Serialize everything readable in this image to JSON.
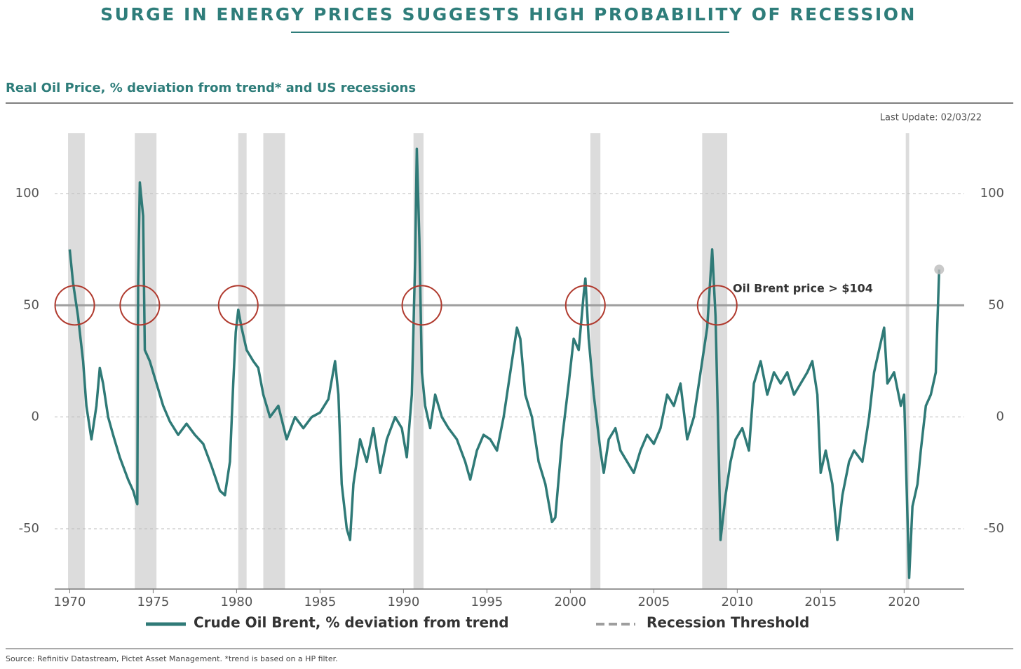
{
  "chart_data": {
    "type": "line",
    "title": "SURGE IN ENERGY PRICES SUGGESTS HIGH PROBABILITY OF RECESSION",
    "subtitle": "Real Oil Price, % deviation from trend* and US recessions",
    "last_update": "Last Update: 02/03/22",
    "annotation": "Oil Brent price > $104",
    "source": "Source: Refinitiv Datastream, Pictet Asset Management. *trend is based on a HP filter.",
    "x": [
      1970.0,
      1970.2,
      1970.5,
      1970.8,
      1971.0,
      1971.3,
      1971.6,
      1971.8,
      1972.0,
      1972.3,
      1972.6,
      1973.0,
      1973.5,
      1973.8,
      1974.0,
      1974.05,
      1974.1,
      1974.2,
      1974.4,
      1974.5,
      1974.8,
      1975.2,
      1975.6,
      1976.0,
      1976.5,
      1977.0,
      1977.5,
      1978.0,
      1978.5,
      1979.0,
      1979.3,
      1979.6,
      1979.8,
      1979.95,
      1980.1,
      1980.3,
      1980.6,
      1981.0,
      1981.3,
      1981.6,
      1982.0,
      1982.5,
      1983.0,
      1983.5,
      1984.0,
      1984.5,
      1985.0,
      1985.5,
      1985.9,
      1986.1,
      1986.3,
      1986.6,
      1986.8,
      1987.0,
      1987.4,
      1987.8,
      1988.2,
      1988.6,
      1989.0,
      1989.5,
      1989.9,
      1990.2,
      1990.5,
      1990.7,
      1990.8,
      1990.95,
      1991.1,
      1991.3,
      1991.6,
      1991.9,
      1992.3,
      1992.7,
      1993.2,
      1993.7,
      1994.0,
      1994.4,
      1994.8,
      1995.2,
      1995.6,
      1996.0,
      1996.4,
      1996.8,
      1997.0,
      1997.3,
      1997.7,
      1998.1,
      1998.5,
      1998.9,
      1999.1,
      1999.5,
      1999.9,
      2000.2,
      2000.5,
      2000.8,
      2000.9,
      2001.1,
      2001.4,
      2001.8,
      2002.0,
      2002.3,
      2002.7,
      2003.0,
      2003.4,
      2003.8,
      2004.2,
      2004.6,
      2005.0,
      2005.4,
      2005.8,
      2006.2,
      2006.6,
      2007.0,
      2007.4,
      2007.8,
      2008.2,
      2008.5,
      2008.7,
      2008.9,
      2009.0,
      2009.3,
      2009.6,
      2009.9,
      2010.3,
      2010.7,
      2011.0,
      2011.4,
      2011.8,
      2012.2,
      2012.6,
      2013.0,
      2013.4,
      2013.8,
      2014.2,
      2014.5,
      2014.8,
      2015.0,
      2015.3,
      2015.7,
      2016.0,
      2016.3,
      2016.7,
      2017.0,
      2017.5,
      2017.9,
      2018.2,
      2018.5,
      2018.8,
      2019.0,
      2019.4,
      2019.8,
      2020.0,
      2020.2,
      2020.3,
      2020.5,
      2020.8,
      2021.0,
      2021.3,
      2021.6,
      2021.9,
      2022.1
    ],
    "series": [
      {
        "name": "Crude Oil Brent, % deviation from trend",
        "color": "#2f7a77",
        "values": [
          75,
          60,
          45,
          25,
          5,
          -10,
          5,
          22,
          15,
          0,
          -8,
          -18,
          -28,
          -33,
          -38,
          -39,
          60,
          105,
          90,
          30,
          25,
          15,
          5,
          -2,
          -8,
          -3,
          -8,
          -12,
          -22,
          -33,
          -35,
          -20,
          15,
          38,
          48,
          40,
          30,
          25,
          22,
          10,
          0,
          5,
          -10,
          0,
          -5,
          0,
          2,
          8,
          25,
          10,
          -30,
          -50,
          -55,
          -30,
          -10,
          -20,
          -5,
          -25,
          -10,
          0,
          -5,
          -18,
          10,
          70,
          120,
          80,
          20,
          5,
          -5,
          10,
          0,
          -5,
          -10,
          -20,
          -28,
          -15,
          -8,
          -10,
          -15,
          0,
          20,
          40,
          35,
          10,
          0,
          -20,
          -30,
          -47,
          -45,
          -10,
          15,
          35,
          30,
          55,
          62,
          35,
          10,
          -15,
          -25,
          -10,
          -5,
          -15,
          -20,
          -25,
          -15,
          -8,
          -12,
          -5,
          10,
          5,
          15,
          -10,
          0,
          20,
          40,
          75,
          45,
          -20,
          -55,
          -35,
          -20,
          -10,
          -5,
          -15,
          15,
          25,
          10,
          20,
          15,
          20,
          10,
          15,
          20,
          25,
          10,
          -25,
          -15,
          -30,
          -55,
          -35,
          -20,
          -15,
          -20,
          0,
          20,
          30,
          40,
          15,
          20,
          5,
          10,
          -45,
          -72,
          -40,
          -30,
          -15,
          5,
          10,
          20,
          66
        ]
      }
    ],
    "threshold": {
      "name": "Recession Threshold",
      "value": 50,
      "color": "#9e9e9e"
    },
    "recessions": [
      [
        1969.9,
        1970.9
      ],
      [
        1973.9,
        1975.2
      ],
      [
        1980.1,
        1980.6
      ],
      [
        1981.6,
        1982.9
      ],
      [
        1990.6,
        1991.2
      ],
      [
        2001.2,
        2001.8
      ],
      [
        2007.9,
        2009.4
      ],
      [
        2020.1,
        2020.3
      ]
    ],
    "highlights": [
      1970.3,
      1974.2,
      1980.1,
      1991.1,
      2000.9,
      2008.8
    ],
    "xlim": [
      1969.1,
      2023.6
    ],
    "ylim": [
      -77,
      127
    ],
    "xticks": [
      1970,
      1975,
      1980,
      1985,
      1990,
      1995,
      2000,
      2005,
      2010,
      2015,
      2020
    ],
    "yticks": [
      -50,
      0,
      50,
      100
    ],
    "grid": true
  }
}
